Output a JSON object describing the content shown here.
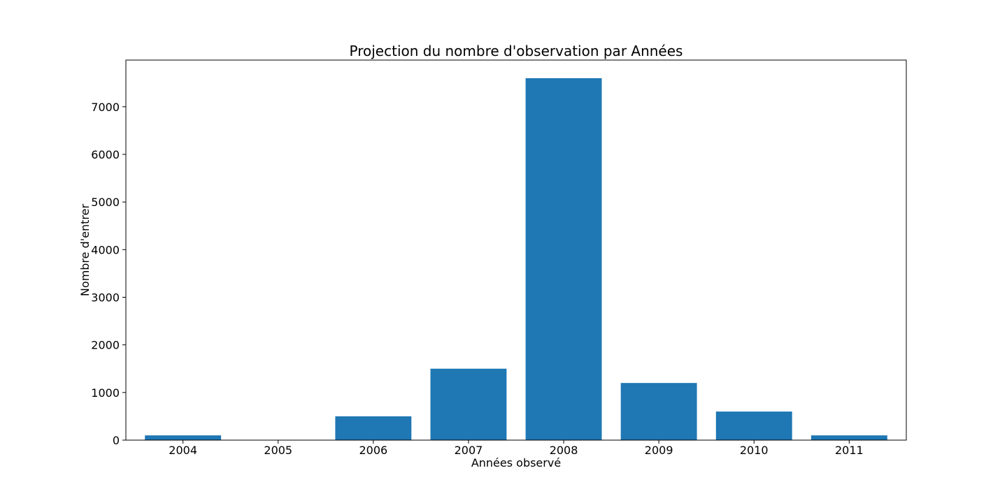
{
  "chart_data": {
    "type": "bar",
    "title": "Projection du nombre d'observation par Années",
    "xlabel": "Années observé",
    "ylabel": "Nombre d'entrer",
    "categories": [
      "2004",
      "2005",
      "2006",
      "2007",
      "2008",
      "2009",
      "2010",
      "2011"
    ],
    "values": [
      100,
      0,
      500,
      1500,
      7600,
      1200,
      600,
      100
    ],
    "ylim": [
      0,
      7980
    ],
    "yticks": [
      0,
      1000,
      2000,
      3000,
      4000,
      5000,
      6000,
      7000
    ],
    "grid": false,
    "legend": "none",
    "bar_color": "#1f77b4"
  }
}
